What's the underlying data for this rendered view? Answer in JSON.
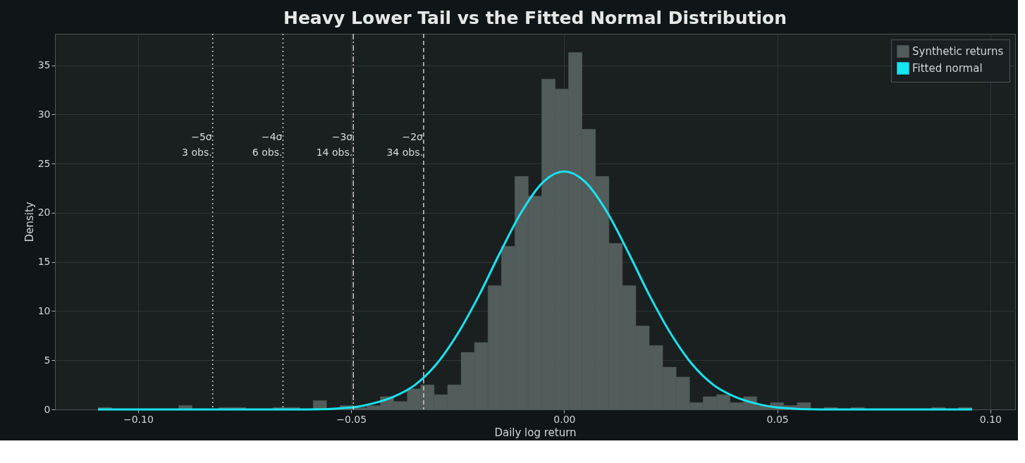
{
  "chart_data": {
    "type": "histogram",
    "title": "Heavy Lower Tail vs the Fitted Normal Distribution",
    "xlabel": "Daily log return",
    "ylabel": "Density",
    "series": [
      {
        "name": "Synthetic returns",
        "color": "#525c5b",
        "bins": [
          -0.1094,
          -0.106245,
          -0.10309,
          -0.099935,
          -0.09678,
          -0.093625,
          -0.09047,
          -0.087315,
          -0.08416,
          -0.081005,
          -0.07785,
          -0.074695,
          -0.07154,
          -0.068385,
          -0.06523,
          -0.062075,
          -0.05892,
          -0.055765,
          -0.05261,
          -0.049455,
          -0.0463,
          -0.043145,
          -0.03999,
          -0.036835,
          -0.03368,
          -0.030525,
          -0.02737,
          -0.024215,
          -0.02106,
          -0.017905,
          -0.01475,
          -0.011595,
          -0.00844,
          -0.005285,
          -0.00213,
          0.001025,
          0.00418,
          0.007335,
          0.01049,
          0.013645,
          0.0168,
          0.019955,
          0.02311,
          0.026265,
          0.02942,
          0.032575,
          0.03573,
          0.038885,
          0.04204,
          0.045195,
          0.04835,
          0.051505,
          0.05466,
          0.057815,
          0.06097,
          0.064125,
          0.06728,
          0.070435,
          0.07359,
          0.076745,
          0.0799,
          0.083055,
          0.08621,
          0.089365,
          0.09252,
          0.095675
        ],
        "values": [
          0.2,
          0,
          0,
          0,
          0,
          0,
          0.4,
          0,
          0,
          0.2,
          0.2,
          0,
          0,
          0.2,
          0.2,
          0,
          0.9,
          0,
          0.4,
          0.2,
          0.4,
          1.3,
          0.8,
          2.1,
          2.5,
          1.5,
          2.5,
          5.8,
          6.8,
          12.6,
          16.6,
          23.7,
          21.7,
          33.6,
          32.6,
          36.3,
          28.5,
          23.7,
          16.9,
          12.6,
          8.5,
          6.5,
          4.3,
          3.3,
          0.7,
          1.3,
          1.5,
          0.7,
          1.3,
          0.4,
          0.7,
          0.4,
          0.7,
          0,
          0.2,
          0,
          0.2,
          0,
          0,
          0,
          0,
          0,
          0.2,
          0,
          0.2
        ]
      },
      {
        "name": "Fitted normal",
        "type": "line",
        "color": "#18e4f2",
        "x": [
          -0.1094,
          -0.08,
          -0.07,
          -0.06,
          -0.05,
          -0.045,
          -0.04,
          -0.035,
          -0.03,
          -0.025,
          -0.02,
          -0.015,
          -0.01,
          -0.005,
          0,
          0.005,
          0.01,
          0.015,
          0.02,
          0.025,
          0.03,
          0.035,
          0.04,
          0.045,
          0.05,
          0.06,
          0.07,
          0.08,
          0.0957
        ],
        "values": [
          0,
          0,
          0,
          0,
          0.2,
          0.6,
          1.3,
          2.5,
          4.6,
          7.7,
          11.6,
          16.0,
          20.1,
          23.1,
          24.2,
          23.1,
          20.1,
          16.0,
          11.6,
          7.7,
          4.6,
          2.5,
          1.3,
          0.6,
          0.2,
          0,
          0,
          0,
          0
        ]
      }
    ],
    "xlim": [
      -0.1195,
      0.1058
    ],
    "ylim": [
      0,
      38.2
    ],
    "xticks": [
      {
        "value": -0.1,
        "label": "−0.10"
      },
      {
        "value": -0.05,
        "label": "−0.05"
      },
      {
        "value": 0,
        "label": "0.00"
      },
      {
        "value": 0.05,
        "label": "0.05"
      },
      {
        "value": 0.1,
        "label": "0.10"
      }
    ],
    "yticks": [
      0,
      5,
      10,
      15,
      20,
      25,
      30,
      35
    ],
    "ref_lines": [
      {
        "axis": "x",
        "value": -0.0825,
        "label": "−5σ\n3 obs.",
        "line_style": "dotted",
        "color": "#cccccc"
      },
      {
        "axis": "x",
        "value": -0.066,
        "label": "−4σ\n6 obs.",
        "line_style": "dotted",
        "color": "#cccccc"
      },
      {
        "axis": "x",
        "value": -0.0495,
        "label": "−3σ\n14 obs.",
        "line_style": "dashdot",
        "color": "#cccccc"
      },
      {
        "axis": "x",
        "value": -0.033,
        "label": "−2σ\n34 obs.",
        "line_style": "dashed",
        "color": "#cccccc"
      }
    ],
    "grid": true,
    "legend": "top right"
  }
}
